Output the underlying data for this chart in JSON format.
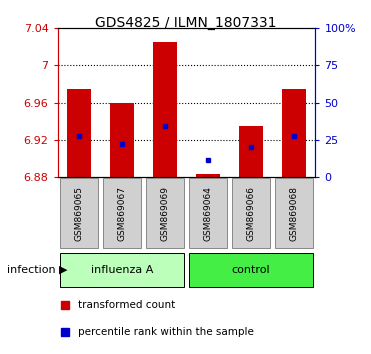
{
  "title": "GDS4825 / ILMN_1807331",
  "samples": [
    "GSM869065",
    "GSM869067",
    "GSM869069",
    "GSM869064",
    "GSM869066",
    "GSM869068"
  ],
  "group_colors": {
    "influenza A": "#bbffbb",
    "control": "#44ee44"
  },
  "bar_base": 6.88,
  "bar_tops": [
    6.975,
    6.96,
    7.025,
    6.883,
    6.935,
    6.975
  ],
  "blue_dots": [
    6.924,
    6.915,
    6.935,
    6.898,
    6.912,
    6.924
  ],
  "ylim_left": [
    6.88,
    7.04
  ],
  "ylim_right": [
    0,
    100
  ],
  "yticks_left": [
    6.88,
    6.92,
    6.96,
    7.0,
    7.04
  ],
  "yticks_right": [
    0,
    25,
    50,
    75,
    100
  ],
  "ytick_labels_left": [
    "6.88",
    "6.92",
    "6.96",
    "7",
    "7.04"
  ],
  "ytick_labels_right": [
    "0",
    "25",
    "50",
    "75",
    "100%"
  ],
  "grid_lines": [
    6.92,
    6.96,
    7.0
  ],
  "bar_color": "#cc0000",
  "dot_color": "#0000cc",
  "left_color": "#cc0000",
  "right_color": "#0000cc",
  "group_label": "infection",
  "group_spans": [
    [
      "influenza A",
      0,
      2
    ],
    [
      "control",
      3,
      5
    ]
  ],
  "legend_items": [
    "transformed count",
    "percentile rank within the sample"
  ],
  "legend_colors": [
    "#cc0000",
    "#0000cc"
  ],
  "bg_color": "#ffffff",
  "sample_box_color": "#d0d0d0"
}
